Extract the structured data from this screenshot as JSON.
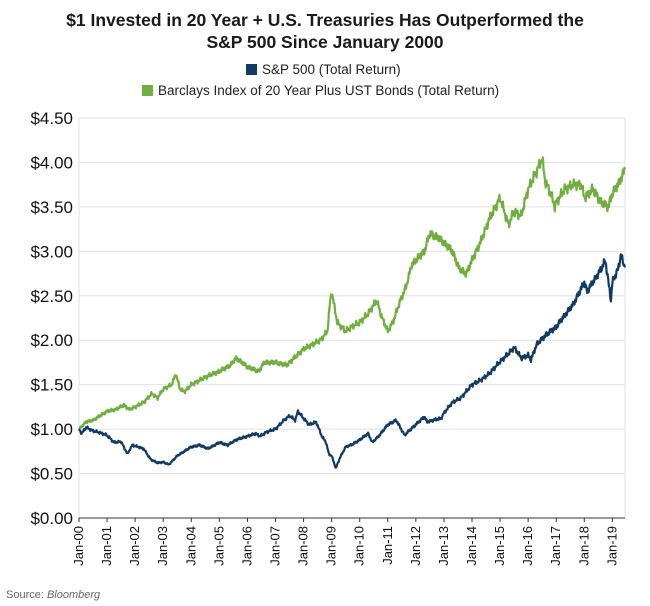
{
  "chart_data": {
    "type": "line",
    "title_lines": [
      "$1 Invested in 20 Year + U.S. Treasuries Has Outperformed the",
      "S&P 500 Since January 2000"
    ],
    "xlabel": "",
    "ylabel": "",
    "ylim": [
      0,
      4.5
    ],
    "y_ticks": [
      0,
      0.5,
      1.0,
      1.5,
      2.0,
      2.5,
      3.0,
      3.5,
      4.0,
      4.5
    ],
    "y_tick_labels": [
      "$0.00",
      "$0.50",
      "$1.00",
      "$1.50",
      "$2.00",
      "$2.50",
      "$3.00",
      "$3.50",
      "$4.00",
      "$4.50"
    ],
    "x_ticks": [
      2000,
      2001,
      2002,
      2003,
      2004,
      2005,
      2006,
      2007,
      2008,
      2009,
      2010,
      2011,
      2012,
      2013,
      2014,
      2015,
      2016,
      2017,
      2018,
      2019
    ],
    "x_tick_labels": [
      "Jan-00",
      "Jan-01",
      "Jan-02",
      "Jan-03",
      "Jan-04",
      "Jan-05",
      "Jan-06",
      "Jan-07",
      "Jan-08",
      "Jan-09",
      "Jan-10",
      "Jan-11",
      "Jan-12",
      "Jan-13",
      "Jan-14",
      "Jan-15",
      "Jan-16",
      "Jan-17",
      "Jan-18",
      "Jan-19"
    ],
    "xlim": [
      2000,
      2019.45
    ],
    "grid": "horizontal",
    "legend_position": "top",
    "series": [
      {
        "name": "S&P 500 (Total Return)",
        "color": "#123a63",
        "x": [
          2000,
          2000.1,
          2000.25,
          2000.5,
          2000.75,
          2001,
          2001.25,
          2001.5,
          2001.72,
          2001.9,
          2002,
          2002.3,
          2002.55,
          2002.8,
          2003,
          2003.2,
          2003.5,
          2003.75,
          2004,
          2004.3,
          2004.6,
          2005,
          2005.3,
          2005.6,
          2006,
          2006.3,
          2006.45,
          2006.7,
          2007,
          2007.3,
          2007.5,
          2007.7,
          2007.8,
          2008,
          2008.2,
          2008.45,
          2008.65,
          2008.8,
          2008.9,
          2009,
          2009.15,
          2009.3,
          2009.5,
          2009.75,
          2010,
          2010.3,
          2010.45,
          2010.7,
          2011,
          2011.3,
          2011.6,
          2011.75,
          2012,
          2012.3,
          2012.4,
          2012.6,
          2012.9,
          2013,
          2013.3,
          2013.6,
          2014,
          2014.3,
          2014.6,
          2015,
          2015.3,
          2015.5,
          2015.65,
          2015.75,
          2016,
          2016.1,
          2016.3,
          2016.6,
          2017,
          2017.3,
          2017.6,
          2018,
          2018.1,
          2018.3,
          2018.6,
          2018.75,
          2018.95,
          2019,
          2019.2,
          2019.3,
          2019.45
        ],
        "values": [
          1.0,
          0.95,
          1.02,
          0.98,
          0.96,
          0.93,
          0.85,
          0.86,
          0.72,
          0.82,
          0.81,
          0.78,
          0.66,
          0.62,
          0.63,
          0.6,
          0.7,
          0.75,
          0.8,
          0.82,
          0.78,
          0.85,
          0.82,
          0.88,
          0.92,
          0.95,
          0.92,
          0.97,
          1.0,
          1.1,
          1.15,
          1.1,
          1.2,
          1.12,
          1.05,
          1.08,
          0.92,
          0.85,
          0.72,
          0.7,
          0.56,
          0.68,
          0.8,
          0.83,
          0.88,
          0.95,
          0.85,
          0.93,
          1.05,
          1.1,
          0.93,
          0.98,
          1.05,
          1.14,
          1.08,
          1.1,
          1.12,
          1.18,
          1.3,
          1.35,
          1.5,
          1.55,
          1.62,
          1.76,
          1.85,
          1.92,
          1.85,
          1.8,
          1.83,
          1.78,
          1.95,
          2.05,
          2.15,
          2.28,
          2.4,
          2.65,
          2.55,
          2.65,
          2.8,
          2.9,
          2.45,
          2.65,
          2.8,
          2.95,
          2.82
        ]
      },
      {
        "name": "Barclays Index of 20 Year Plus UST Bonds (Total Return)",
        "color": "#6fae3f",
        "x": [
          2000,
          2000.25,
          2000.5,
          2000.75,
          2001,
          2001.3,
          2001.6,
          2001.8,
          2002,
          2002.3,
          2002.6,
          2002.8,
          2003,
          2003.3,
          2003.45,
          2003.6,
          2003.75,
          2004,
          2004.3,
          2004.6,
          2005,
          2005.4,
          2005.6,
          2006,
          2006.4,
          2006.6,
          2007,
          2007.4,
          2007.6,
          2008,
          2008.3,
          2008.6,
          2008.85,
          2008.95,
          2009,
          2009.2,
          2009.5,
          2009.7,
          2010,
          2010.3,
          2010.6,
          2010.8,
          2011,
          2011.2,
          2011.45,
          2011.65,
          2011.85,
          2012,
          2012.3,
          2012.5,
          2012.8,
          2013,
          2013.3,
          2013.55,
          2013.8,
          2014,
          2014.3,
          2014.6,
          2015,
          2015.1,
          2015.3,
          2015.5,
          2015.75,
          2016,
          2016.3,
          2016.5,
          2016.6,
          2016.8,
          2016.95,
          2017,
          2017.3,
          2017.6,
          2017.9,
          2018,
          2018.3,
          2018.6,
          2018.85,
          2019,
          2019.2,
          2019.35,
          2019.45
        ],
        "values": [
          1.0,
          1.08,
          1.1,
          1.15,
          1.2,
          1.22,
          1.27,
          1.22,
          1.25,
          1.3,
          1.4,
          1.35,
          1.45,
          1.5,
          1.62,
          1.45,
          1.42,
          1.5,
          1.55,
          1.6,
          1.65,
          1.72,
          1.8,
          1.7,
          1.65,
          1.75,
          1.75,
          1.72,
          1.78,
          1.9,
          1.95,
          2.0,
          2.1,
          2.45,
          2.55,
          2.2,
          2.1,
          2.15,
          2.2,
          2.3,
          2.45,
          2.25,
          2.1,
          2.22,
          2.45,
          2.6,
          2.85,
          2.9,
          3.0,
          3.2,
          3.15,
          3.1,
          3.0,
          2.8,
          2.75,
          2.9,
          3.1,
          3.35,
          3.6,
          3.5,
          3.3,
          3.45,
          3.4,
          3.7,
          3.9,
          4.05,
          3.8,
          3.65,
          3.5,
          3.55,
          3.7,
          3.75,
          3.75,
          3.6,
          3.7,
          3.55,
          3.5,
          3.65,
          3.75,
          3.85,
          3.92
        ]
      }
    ]
  },
  "source": {
    "prefix": "Source: ",
    "name": "Bloomberg"
  }
}
